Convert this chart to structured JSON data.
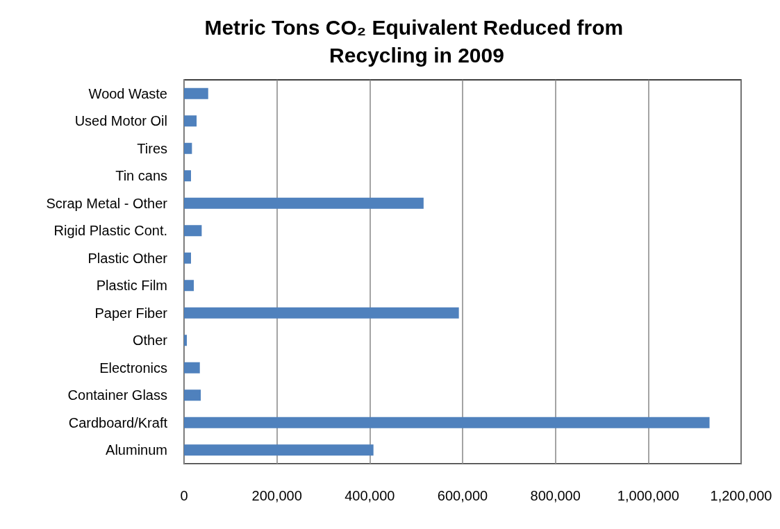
{
  "chart_data": {
    "type": "bar",
    "orientation": "horizontal",
    "title": "Metric Tons CO₂ Equivalent Reduced from Recycling in 2009",
    "categories": [
      "Wood Waste",
      "Used Motor Oil",
      "Tires",
      "Tin cans",
      "Scrap Metal - Other",
      "Rigid Plastic Cont.",
      "Plastic Other",
      "Plastic Film",
      "Paper Fiber",
      "Other",
      "Electronics",
      "Container Glass",
      "Cardboard/Kraft",
      "Aluminum"
    ],
    "values": [
      52000,
      27000,
      17000,
      15000,
      516000,
      38000,
      15000,
      21000,
      592000,
      6000,
      34000,
      36000,
      1132000,
      408000
    ],
    "color": "#4f81bd",
    "xlim": [
      0,
      1200000
    ],
    "xticks": [
      0,
      {
        "value": 200000,
        "label": "200,000"
      },
      {
        "value": 400000,
        "label": "400,000"
      },
      {
        "value": 600000,
        "label": "600,000"
      },
      {
        "value": 800000,
        "label": "800,000"
      },
      {
        "value": 1000000,
        "label": "1,000,000"
      },
      {
        "value": 1200000,
        "label": "1,200,000"
      }
    ],
    "grid": "x"
  }
}
